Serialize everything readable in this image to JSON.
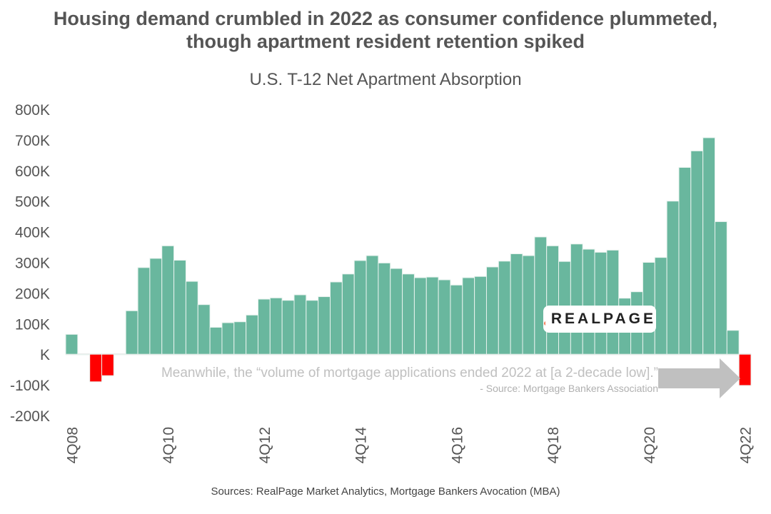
{
  "title_line1": "Housing demand crumbled in 2022 as consumer confidence plummeted,",
  "title_line2": "though apartment resident retention spiked",
  "source": "Sources: RealPage Market Analytics, Mortgage Bankers Avocation (MBA)",
  "logo": "REALPAGE",
  "annotation": {
    "quote": "Meanwhile, the “volume of mortgage applications ended 2022 at [a 2-decade low].”",
    "attribution": "- Source: Mortgage Bankers Association"
  },
  "colors": {
    "positive": "#69b79e",
    "negative": "#ff0000",
    "text": "#555555",
    "arrow": "#c0c0c0",
    "logo_dots": "#f07a55"
  },
  "chart_data": {
    "type": "bar",
    "title": "U.S. T-12 Net Apartment Absorption",
    "xlabel": "",
    "ylabel": "",
    "ylim": [
      -200000,
      800000
    ],
    "yticks": [
      -200000,
      -100000,
      0,
      100000,
      200000,
      300000,
      400000,
      500000,
      600000,
      700000,
      800000
    ],
    "ytick_labels": [
      "-200K",
      "-100K",
      "K",
      "100K",
      "200K",
      "300K",
      "400K",
      "500K",
      "600K",
      "700K",
      "800K"
    ],
    "xtick_labels": [
      "4Q08",
      "4Q10",
      "4Q12",
      "4Q14",
      "4Q16",
      "4Q18",
      "4Q20",
      "4Q22"
    ],
    "grid": false,
    "categories": [
      "4Q08",
      "1Q09",
      "2Q09",
      "3Q09",
      "4Q09",
      "1Q10",
      "2Q10",
      "3Q10",
      "4Q10",
      "1Q11",
      "2Q11",
      "3Q11",
      "4Q11",
      "1Q12",
      "2Q12",
      "3Q12",
      "4Q12",
      "1Q13",
      "2Q13",
      "3Q13",
      "4Q13",
      "1Q14",
      "2Q14",
      "3Q14",
      "4Q14",
      "1Q15",
      "2Q15",
      "3Q15",
      "4Q15",
      "1Q16",
      "2Q16",
      "3Q16",
      "4Q16",
      "1Q17",
      "2Q17",
      "3Q17",
      "4Q17",
      "1Q18",
      "2Q18",
      "3Q18",
      "4Q18",
      "1Q19",
      "2Q19",
      "3Q19",
      "4Q19",
      "1Q20",
      "2Q20",
      "3Q20",
      "4Q20",
      "1Q21",
      "2Q21",
      "3Q21",
      "4Q21",
      "1Q22",
      "2Q22",
      "3Q22",
      "4Q22"
    ],
    "values": [
      65000,
      -2000,
      -90000,
      -70000,
      -1000,
      142000,
      283000,
      313000,
      354000,
      307000,
      238000,
      162000,
      88000,
      103000,
      106000,
      128000,
      180000,
      184000,
      176000,
      194000,
      176000,
      188000,
      236000,
      262000,
      306000,
      322000,
      298000,
      280000,
      262000,
      250000,
      252000,
      243000,
      226000,
      250000,
      254000,
      285000,
      304000,
      328000,
      322000,
      383000,
      354000,
      303000,
      360000,
      343000,
      333000,
      340000,
      183000,
      204000,
      300000,
      316000,
      500000,
      610000,
      664000,
      707000,
      433000,
      78000,
      -102000
    ]
  }
}
